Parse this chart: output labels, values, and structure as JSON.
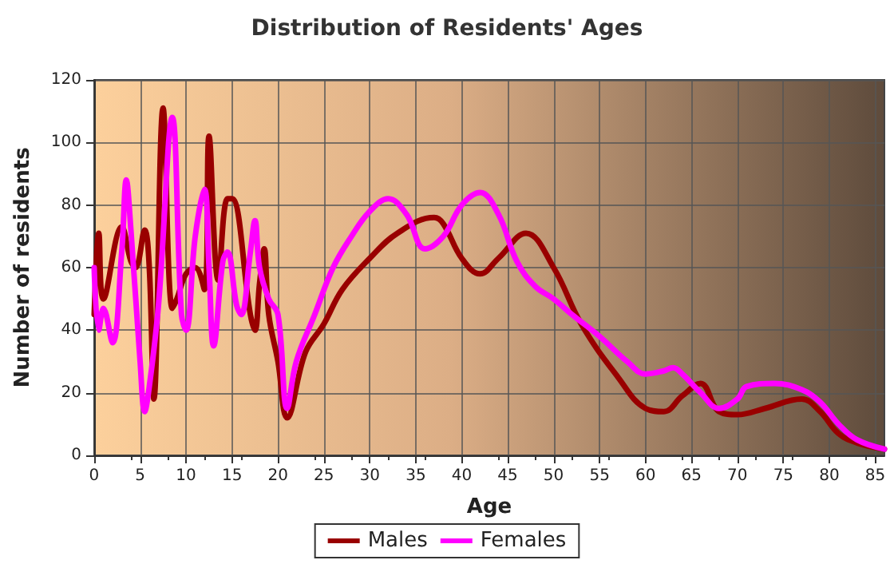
{
  "chart_data": {
    "type": "line",
    "title": "Distribution of Residents' Ages",
    "xlabel": "Age",
    "ylabel": "Number of residents",
    "xlim": [
      0,
      86
    ],
    "xticks": [
      0,
      5,
      10,
      15,
      20,
      25,
      30,
      35,
      40,
      45,
      50,
      55,
      60,
      65,
      70,
      75,
      80,
      85
    ],
    "ylim": [
      0,
      120
    ],
    "yticks": [
      0,
      20,
      40,
      60,
      80,
      100,
      120
    ],
    "grid": true,
    "legend": "bottom",
    "marker": "none",
    "line_style": "solid",
    "series": [
      {
        "name": "Males",
        "color": "#990000",
        "x": [
          0,
          0.5,
          1,
          3,
          4,
          4.5,
          5.5,
          6,
          6.5,
          7.5,
          8.5,
          9,
          10,
          11,
          12,
          12.5,
          13.5,
          14.5,
          15,
          17,
          17.5,
          18,
          18.5,
          19,
          20,
          21,
          23,
          25,
          27,
          30,
          33,
          37,
          38,
          40,
          42,
          44,
          47,
          50,
          53,
          57,
          60,
          62,
          64,
          66,
          68,
          70,
          73,
          77,
          79,
          81,
          83,
          86
        ],
        "values": [
          45,
          71,
          50,
          73,
          62,
          60,
          72,
          60,
          18,
          111,
          47,
          50,
          58,
          60,
          53,
          102,
          56,
          82,
          82,
          45,
          40,
          55,
          66,
          45,
          30,
          12,
          33,
          42,
          53,
          63,
          71,
          76,
          74,
          63,
          58,
          63,
          71,
          60,
          42,
          25,
          15,
          14,
          19,
          23,
          14,
          13,
          15,
          18,
          14,
          7,
          4,
          2
        ]
      },
      {
        "name": "Females",
        "color": "#ff00ff",
        "x": [
          0,
          0.5,
          1,
          2,
          3,
          3.5,
          4,
          5,
          5.5,
          6,
          7,
          8.5,
          9.5,
          10,
          11,
          12,
          12.5,
          13,
          14,
          14.5,
          15.5,
          16,
          17,
          17.5,
          18,
          19,
          20,
          21,
          22,
          24,
          26,
          28,
          30,
          32,
          34,
          36,
          38,
          40,
          42,
          44,
          46,
          48,
          50,
          52,
          55,
          58,
          60,
          62,
          63,
          64,
          66,
          68,
          70,
          71,
          74,
          77,
          79,
          81,
          83,
          86
        ],
        "values": [
          60,
          40,
          47,
          36,
          65,
          88,
          72,
          30,
          14,
          22,
          48,
          108,
          45,
          40,
          70,
          85,
          60,
          35,
          62,
          65,
          48,
          45,
          65,
          75,
          60,
          50,
          45,
          15,
          30,
          45,
          60,
          70,
          78,
          82,
          77,
          66,
          70,
          80,
          84,
          77,
          62,
          54,
          50,
          45,
          38,
          30,
          26,
          27,
          28,
          26,
          20,
          15,
          18,
          22,
          23,
          21,
          17,
          10,
          5,
          2
        ]
      }
    ]
  }
}
